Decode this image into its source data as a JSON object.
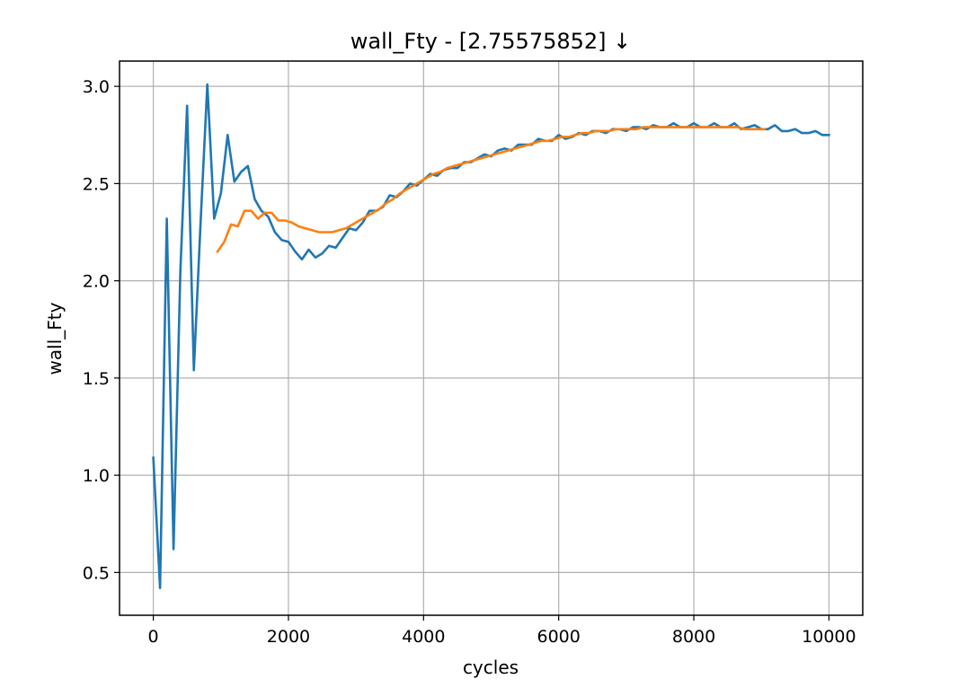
{
  "chart_data": {
    "type": "line",
    "title": "wall_Fty - [2.75575852]  ↓",
    "xlabel": "cycles",
    "ylabel": "wall_Fty",
    "xlim": [
      -500,
      10500
    ],
    "ylim": [
      0.28,
      3.13
    ],
    "xticks": [
      0,
      2000,
      4000,
      6000,
      8000,
      10000
    ],
    "yticks": [
      0.5,
      1.0,
      1.5,
      2.0,
      2.5,
      3.0
    ],
    "xtick_labels": [
      "0",
      "2000",
      "4000",
      "6000",
      "8000",
      "10000"
    ],
    "ytick_labels": [
      "0.5",
      "1.0",
      "1.5",
      "2.0",
      "2.5",
      "3.0"
    ],
    "grid": true,
    "series": [
      {
        "color": "#1f77b4",
        "x": [
          0,
          100,
          200,
          300,
          400,
          500,
          600,
          700,
          800,
          900,
          1000,
          1100,
          1200,
          1300,
          1400,
          1500,
          1600,
          1700,
          1800,
          1900,
          2000,
          2100,
          2200,
          2300,
          2400,
          2500,
          2600,
          2700,
          2800,
          2900,
          3000,
          3100,
          3200,
          3300,
          3400,
          3500,
          3600,
          3700,
          3800,
          3900,
          4000,
          4100,
          4200,
          4300,
          4400,
          4500,
          4600,
          4700,
          4800,
          4900,
          5000,
          5100,
          5200,
          5300,
          5400,
          5500,
          5600,
          5700,
          5800,
          5900,
          6000,
          6100,
          6200,
          6300,
          6400,
          6500,
          6600,
          6700,
          6800,
          6900,
          7000,
          7100,
          7200,
          7300,
          7400,
          7500,
          7600,
          7700,
          7800,
          7900,
          8000,
          8100,
          8200,
          8300,
          8400,
          8500,
          8600,
          8700,
          8800,
          8900,
          9000,
          9100,
          9200,
          9300,
          9400,
          9500,
          9600,
          9700,
          9800,
          9900,
          10000
        ],
        "y": [
          1.09,
          0.42,
          2.32,
          0.62,
          2.05,
          2.9,
          1.54,
          2.3,
          3.01,
          2.32,
          2.45,
          2.75,
          2.51,
          2.56,
          2.59,
          2.42,
          2.36,
          2.33,
          2.25,
          2.21,
          2.2,
          2.15,
          2.11,
          2.16,
          2.12,
          2.14,
          2.18,
          2.17,
          2.22,
          2.27,
          2.26,
          2.3,
          2.36,
          2.36,
          2.38,
          2.44,
          2.43,
          2.46,
          2.5,
          2.49,
          2.52,
          2.55,
          2.54,
          2.57,
          2.58,
          2.58,
          2.61,
          2.61,
          2.63,
          2.65,
          2.64,
          2.67,
          2.68,
          2.67,
          2.7,
          2.7,
          2.7,
          2.73,
          2.72,
          2.72,
          2.75,
          2.73,
          2.74,
          2.76,
          2.75,
          2.77,
          2.77,
          2.76,
          2.78,
          2.78,
          2.77,
          2.79,
          2.79,
          2.78,
          2.8,
          2.79,
          2.79,
          2.81,
          2.79,
          2.79,
          2.81,
          2.79,
          2.79,
          2.81,
          2.79,
          2.79,
          2.81,
          2.78,
          2.79,
          2.8,
          2.78,
          2.78,
          2.8,
          2.77,
          2.77,
          2.78,
          2.76,
          2.76,
          2.77,
          2.75,
          2.75
        ]
      },
      {
        "color": "#ff7f0e",
        "x": [
          950,
          1050,
          1150,
          1250,
          1350,
          1450,
          1550,
          1650,
          1750,
          1850,
          1950,
          2050,
          2150,
          2250,
          2350,
          2450,
          2550,
          2650,
          2750,
          2850,
          2950,
          3050,
          3150,
          3250,
          3350,
          3450,
          3550,
          3650,
          3750,
          3850,
          3950,
          4050,
          4150,
          4250,
          4350,
          4450,
          4550,
          4650,
          4750,
          4850,
          4950,
          5050,
          5150,
          5250,
          5350,
          5450,
          5550,
          5650,
          5750,
          5850,
          5950,
          6050,
          6150,
          6250,
          6350,
          6450,
          6550,
          6650,
          6750,
          6850,
          6950,
          7050,
          7150,
          7250,
          7350,
          7450,
          7550,
          7650,
          7750,
          7850,
          7950,
          8050,
          8150,
          8250,
          8350,
          8450,
          8550,
          8650,
          8750,
          8850,
          8950,
          9050
        ],
        "y": [
          2.15,
          2.2,
          2.29,
          2.28,
          2.36,
          2.36,
          2.32,
          2.35,
          2.35,
          2.31,
          2.31,
          2.3,
          2.28,
          2.27,
          2.26,
          2.25,
          2.25,
          2.25,
          2.26,
          2.27,
          2.29,
          2.31,
          2.33,
          2.35,
          2.37,
          2.4,
          2.42,
          2.45,
          2.47,
          2.49,
          2.51,
          2.53,
          2.55,
          2.56,
          2.58,
          2.59,
          2.6,
          2.61,
          2.62,
          2.63,
          2.64,
          2.65,
          2.66,
          2.67,
          2.68,
          2.69,
          2.7,
          2.71,
          2.72,
          2.72,
          2.73,
          2.74,
          2.74,
          2.75,
          2.76,
          2.76,
          2.77,
          2.77,
          2.77,
          2.78,
          2.78,
          2.78,
          2.78,
          2.79,
          2.79,
          2.79,
          2.79,
          2.79,
          2.79,
          2.79,
          2.79,
          2.79,
          2.79,
          2.79,
          2.79,
          2.79,
          2.79,
          2.79,
          2.78,
          2.78,
          2.78,
          2.78
        ]
      }
    ]
  }
}
